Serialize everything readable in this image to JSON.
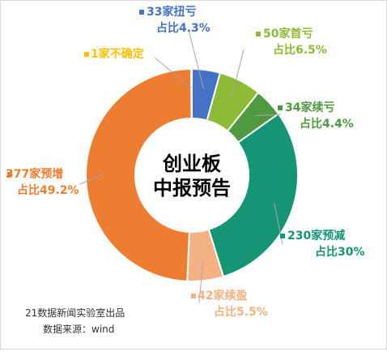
{
  "chart_data": {
    "type": "pie",
    "title": "创业板\n中报预告",
    "categories": [
      "33家扭亏",
      "50家首亏",
      "34家续亏",
      "230家预减",
      "42家续盈",
      "377家预增",
      "1家不确定"
    ],
    "values": [
      4.3,
      6.5,
      4.4,
      30,
      5.5,
      49.2,
      0.1
    ],
    "share_labels": [
      "占比4.3%",
      "占比6.5%",
      "占比4.4%",
      "占比30%",
      "占比5.5%",
      "占比49.2%",
      ""
    ],
    "colors": [
      "#4472c4",
      "#8dbb36",
      "#4f9a3e",
      "#159575",
      "#f4b183",
      "#ed7d31",
      "#ffc000"
    ],
    "legend": "none"
  },
  "footer": {
    "credit": "21数据新闻实验室出品",
    "source": "数据来源：wind"
  }
}
